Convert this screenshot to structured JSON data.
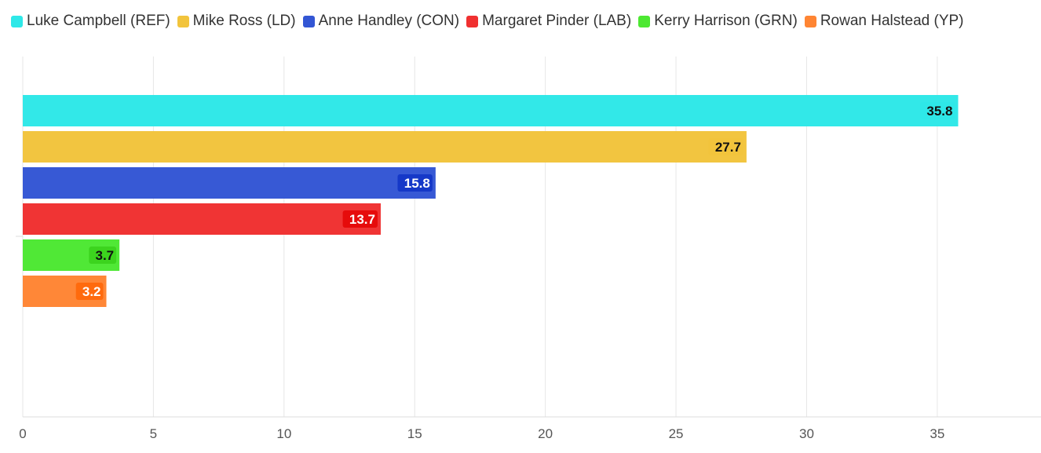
{
  "chart_data": {
    "type": "bar",
    "orientation": "horizontal",
    "categories": [
      "Luke Campbell (REF)",
      "Mike Ross (LD)",
      "Anne Handley (CON)",
      "Margaret Pinder (LAB)",
      "Kerry Harrison (GRN)",
      "Rowan Halstead (YP)"
    ],
    "values": [
      35.8,
      27.7,
      15.8,
      13.7,
      3.7,
      3.2
    ],
    "colors": [
      "#2ee8e8",
      "#f2c43c",
      "#3356d4",
      "#f03030",
      "#4de832",
      "#ff8533"
    ],
    "label_backgrounds": [
      "#2ee8e8",
      "#f2c43c",
      "#1538c8",
      "#e60b0b",
      "#3cd41e",
      "#ff6a0d"
    ],
    "label_colors": [
      "#111111",
      "#111111",
      "#ffffff",
      "#ffffff",
      "#111111",
      "#ffffff"
    ],
    "xlim": [
      0,
      39
    ],
    "xticks": [
      0,
      5,
      10,
      15,
      20,
      25,
      30,
      35
    ],
    "legend_position": "top-left",
    "grid": true
  }
}
